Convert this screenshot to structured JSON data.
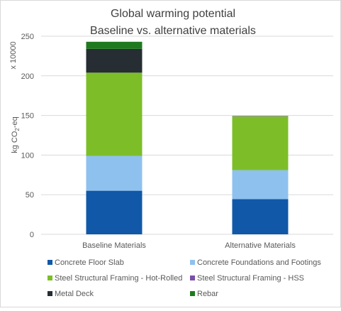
{
  "chart_data": {
    "type": "bar",
    "stacked": true,
    "title_lines": [
      "Global warming potential",
      "Baseline vs. alternative materials"
    ],
    "ylabel": {
      "prefix": "kg CO",
      "sub": "2",
      "suffix": "-eq"
    },
    "multiplier_label": "x 10000",
    "ylim": [
      0,
      250
    ],
    "yticks": [
      0,
      50,
      100,
      150,
      200,
      250
    ],
    "ytick_labels": [
      "0",
      "50",
      "100",
      "150",
      "200",
      "250"
    ],
    "gridlines": true,
    "legend_position": "bottom",
    "categories": [
      "Baseline Materials",
      "Alternative Materials"
    ],
    "series": [
      {
        "name": "Concrete Floor Slab",
        "color": "#1158A8",
        "values": [
          55,
          44.5
        ]
      },
      {
        "name": "Concrete Foundations and Footings",
        "color": "#8FC1EF",
        "values": [
          44,
          36.5
        ]
      },
      {
        "name": "Steel Structural Framing - Hot-Rolled",
        "color": "#7DBE28",
        "values": [
          105,
          68
        ]
      },
      {
        "name": "Steel Structural Framing - HSS",
        "color": "#7B4FA8",
        "values": [
          0,
          0.5
        ]
      },
      {
        "name": "Metal Deck",
        "color": "#262D33",
        "values": [
          30,
          0
        ]
      },
      {
        "name": "Rebar",
        "color": "#1F7A1F",
        "values": [
          9,
          0
        ]
      }
    ]
  }
}
